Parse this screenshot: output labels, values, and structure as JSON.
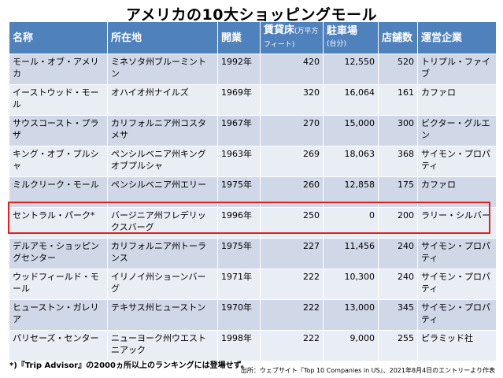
{
  "title": "アメリカの10大ショッピングモール",
  "headers": {
    "name": "名称",
    "location": "所在地",
    "opened": "開業",
    "area_main": "賃貸床",
    "area_unit": "(万平方フィート)",
    "parking_main": "駐車場",
    "parking_unit": "(台分)",
    "stores": "店舗数",
    "operator": "運営企業"
  },
  "rows": [
    {
      "name": "モール・オブ・アメリカ",
      "location": "ミネソタ州ブルーミントン",
      "opened": "1992年",
      "area": "420",
      "parking": "12,550",
      "stores": "520",
      "operator": "トリプル・ファイブ"
    },
    {
      "name": "イーストウッド・モール",
      "location": "オハイオ州ナイルズ",
      "opened": "1969年",
      "area": "320",
      "parking": "16,064",
      "stores": "161",
      "operator": "カファロ"
    },
    {
      "name": "サウスコースト・プラザ",
      "location": "カリフォルニア州コスタメサ",
      "opened": "1967年",
      "area": "270",
      "parking": "15,000",
      "stores": "300",
      "operator": "ビクター・グルエン"
    },
    {
      "name": "キング・オブ・プルシャ",
      "location": "ペンシルベニア州キングオブプルシャ",
      "opened": "1963年",
      "area": "269",
      "parking": "18,063",
      "stores": "368",
      "operator": "サイモン・プロパティ"
    },
    {
      "name": "ミルクリーク・モール",
      "location": "ペンシルベニア州エリー",
      "opened": "1975年",
      "area": "260",
      "parking": "12,858",
      "stores": "175",
      "operator": "カファロ"
    },
    {
      "name": "セントラル・パーク*",
      "location": "バージニア州フレデリックスバーグ",
      "opened": "1996年",
      "area": "250",
      "parking": "0",
      "stores": "200",
      "operator": "ラリー・シルバー"
    },
    {
      "name": "デルアモ・ショッピングセンター",
      "location": "カリフォルニア州トーランス",
      "opened": "1975年",
      "area": "227",
      "parking": "11,456",
      "stores": "240",
      "operator": "サイモン・プロパティ"
    },
    {
      "name": "ウッドフィールド・モール",
      "location": "イリノイ州ショーンバーグ",
      "opened": "1971年",
      "area": "222",
      "parking": "10,300",
      "stores": "240",
      "operator": "サイモン・プロパティ"
    },
    {
      "name": "ヒューストン・ガレリア",
      "location": "テキサス州ヒューストン",
      "opened": "1970年",
      "area": "222",
      "parking": "13,000",
      "stores": "345",
      "operator": "サイモン・プロパティ"
    },
    {
      "name": "パリセーズ・センター",
      "location": "ニューヨーク州ウエストニアック",
      "opened": "1998年",
      "area": "222",
      "parking": "9,000",
      "stores": "255",
      "operator": "ピラミッド社"
    }
  ],
  "footnote": "*)『Trip Advisor』の2000ヵ所以上のランキングには登場せず。",
  "source": "出所：ウェブサイト『Top 10 Companies in US』、2021年8月4日のエントリーより作表",
  "colors": {
    "header_bg": "#4f81bd",
    "row_odd": "#d0d8e8",
    "row_even": "#e9edf4",
    "highlight": "#e02020"
  }
}
